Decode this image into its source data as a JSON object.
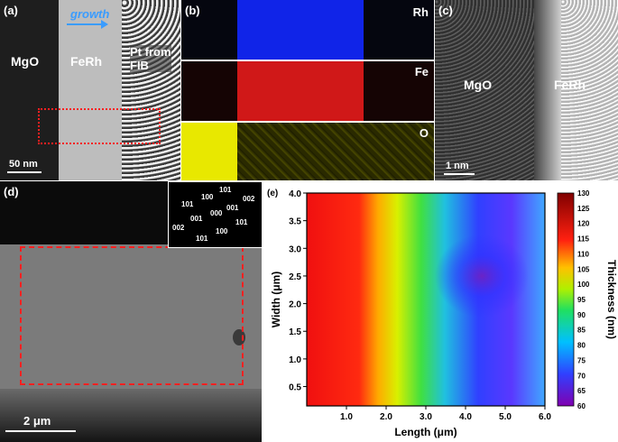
{
  "panel_a": {
    "label": "(a)",
    "growth": "growth",
    "mgo": "MgO",
    "ferh": "FeRh",
    "pt": "Pt from\nFIB",
    "scale": "50 nm"
  },
  "panel_b": {
    "label": "(b)",
    "maps": [
      {
        "element": "Rh",
        "color": "#1030ff"
      },
      {
        "element": "Fe",
        "color": "#e01010"
      },
      {
        "element": "O",
        "color": "#f0f000"
      }
    ]
  },
  "panel_c": {
    "label": "(c)",
    "mgo": "MgO",
    "ferh": "FeRh",
    "scale": "1 nm"
  },
  "panel_d": {
    "label": "(d)",
    "scale": "2 μm",
    "diffraction_labels": [
      "101",
      "100",
      "101",
      "002",
      "001",
      "000",
      "001",
      "002",
      "101",
      "100",
      "101"
    ]
  },
  "panel_e": {
    "label": "(e)",
    "colorbar_title": "Thickness (nm)",
    "colorbar_ticks": [
      "130",
      "125",
      "120",
      "115",
      "110",
      "105",
      "100",
      "95",
      "90",
      "85",
      "80",
      "75",
      "70",
      "65",
      "60"
    ]
  },
  "chart_data": {
    "type": "heatmap",
    "title": "",
    "xlabel": "Length (μm)",
    "ylabel": "Width (μm)",
    "xlim": [
      0,
      6.0
    ],
    "ylim": [
      0.15,
      4.0
    ],
    "x_ticks": [
      "1.0",
      "2.0",
      "3.0",
      "4.0",
      "5.0",
      "6.0"
    ],
    "y_ticks": [
      "0.5",
      "1.0",
      "1.5",
      "2.0",
      "2.5",
      "3.0",
      "3.5",
      "4.0"
    ],
    "colorbar_range": [
      60,
      130
    ],
    "thickness_profile": [
      {
        "length": 0.5,
        "thickness": 118
      },
      {
        "length": 1.5,
        "thickness": 112
      },
      {
        "length": 2.0,
        "thickness": 100
      },
      {
        "length": 3.0,
        "thickness": 85
      },
      {
        "length": 4.5,
        "thickness": 65
      },
      {
        "length": 6.0,
        "thickness": 75
      }
    ]
  }
}
